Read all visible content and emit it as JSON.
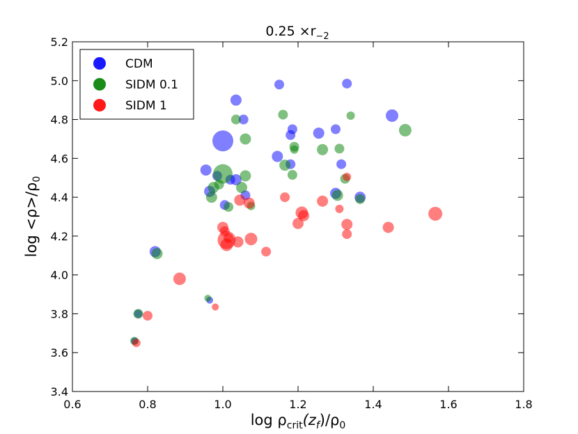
{
  "chart_data": {
    "type": "scatter",
    "title": "0.25 ×r",
    "title_subscript": "−2",
    "xlabel": "log ρ",
    "xlabel_subscript": "crit",
    "xlabel_tail": "(z",
    "xlabel_tail_subscript": "f",
    "xlabel_end": ")/ρ",
    "xlabel_end_subscript": "0",
    "ylabel": "log <ρ>/ρ",
    "ylabel_subscript": "0",
    "xlim": [
      0.6,
      1.8
    ],
    "ylim": [
      3.4,
      5.2
    ],
    "xticks": [
      "0.6",
      "0.8",
      "1.0",
      "1.2",
      "1.4",
      "1.6",
      "1.8"
    ],
    "yticks": [
      "3.4",
      "3.6",
      "3.8",
      "4.0",
      "4.2",
      "4.4",
      "4.6",
      "4.8",
      "5.0",
      "5.2"
    ],
    "legend_position": "top-left",
    "series": [
      {
        "name": "CDM",
        "color": "#0000ff",
        "points": [
          [
            1.0,
            4.69,
            15
          ],
          [
            1.035,
            4.9,
            8
          ],
          [
            1.15,
            4.98,
            7
          ],
          [
            1.33,
            4.985,
            7
          ],
          [
            1.45,
            4.82,
            9
          ],
          [
            1.055,
            4.8,
            7
          ],
          [
            1.185,
            4.75,
            7
          ],
          [
            1.255,
            4.73,
            8
          ],
          [
            1.3,
            4.75,
            7
          ],
          [
            1.18,
            4.72,
            7
          ],
          [
            1.145,
            4.61,
            8
          ],
          [
            0.955,
            4.54,
            8
          ],
          [
            0.985,
            4.51,
            7
          ],
          [
            1.035,
            4.49,
            8
          ],
          [
            1.18,
            4.57,
            7
          ],
          [
            1.315,
            4.57,
            7
          ],
          [
            0.965,
            4.43,
            8
          ],
          [
            1.02,
            4.49,
            7
          ],
          [
            1.06,
            4.41,
            7
          ],
          [
            1.3,
            4.42,
            8
          ],
          [
            1.365,
            4.4,
            8
          ],
          [
            1.005,
            4.36,
            7
          ],
          [
            0.82,
            4.12,
            8
          ],
          [
            0.775,
            3.8,
            6
          ],
          [
            0.965,
            3.87,
            5
          ],
          [
            0.765,
            3.66,
            5
          ]
        ]
      },
      {
        "name": "SIDM 0.1",
        "color": "#008000",
        "points": [
          [
            1.035,
            4.8,
            7
          ],
          [
            1.16,
            4.825,
            7
          ],
          [
            1.34,
            4.82,
            6
          ],
          [
            1.485,
            4.745,
            9
          ],
          [
            1.06,
            4.7,
            8
          ],
          [
            1.19,
            4.66,
            7
          ],
          [
            1.19,
            4.645,
            6
          ],
          [
            1.265,
            4.645,
            8
          ],
          [
            1.31,
            4.65,
            7
          ],
          [
            1.0,
            4.52,
            14
          ],
          [
            1.06,
            4.51,
            8
          ],
          [
            1.165,
            4.565,
            8
          ],
          [
            1.185,
            4.515,
            7
          ],
          [
            1.325,
            4.495,
            7
          ],
          [
            0.975,
            4.45,
            8
          ],
          [
            1.05,
            4.45,
            8
          ],
          [
            0.99,
            4.465,
            7
          ],
          [
            0.97,
            4.4,
            8
          ],
          [
            1.305,
            4.41,
            8
          ],
          [
            1.365,
            4.39,
            7
          ],
          [
            1.015,
            4.35,
            7
          ],
          [
            1.075,
            4.355,
            6
          ],
          [
            0.825,
            4.11,
            8
          ],
          [
            0.96,
            3.88,
            5
          ],
          [
            0.775,
            3.8,
            7
          ],
          [
            0.765,
            3.66,
            6
          ]
        ]
      },
      {
        "name": "SIDM 1",
        "color": "#ff0000",
        "points": [
          [
            1.045,
            4.385,
            8
          ],
          [
            1.07,
            4.37,
            8
          ],
          [
            1.165,
            4.4,
            7
          ],
          [
            1.265,
            4.38,
            8
          ],
          [
            1.33,
            4.505,
            6
          ],
          [
            1.21,
            4.32,
            9
          ],
          [
            1.215,
            4.305,
            8
          ],
          [
            1.31,
            4.34,
            6
          ],
          [
            1.565,
            4.315,
            10
          ],
          [
            1.0,
            4.245,
            8
          ],
          [
            1.005,
            4.225,
            7
          ],
          [
            1.2,
            4.265,
            8
          ],
          [
            1.33,
            4.26,
            8
          ],
          [
            1.33,
            4.21,
            7
          ],
          [
            1.44,
            4.245,
            8
          ],
          [
            1.01,
            4.18,
            13
          ],
          [
            1.01,
            4.155,
            9
          ],
          [
            1.04,
            4.17,
            8
          ],
          [
            1.075,
            4.185,
            9
          ],
          [
            1.115,
            4.12,
            7
          ],
          [
            1.015,
            4.19,
            7
          ],
          [
            0.885,
            3.98,
            9
          ],
          [
            0.98,
            3.835,
            5
          ],
          [
            0.8,
            3.79,
            7
          ],
          [
            0.77,
            3.65,
            6
          ]
        ]
      }
    ]
  }
}
